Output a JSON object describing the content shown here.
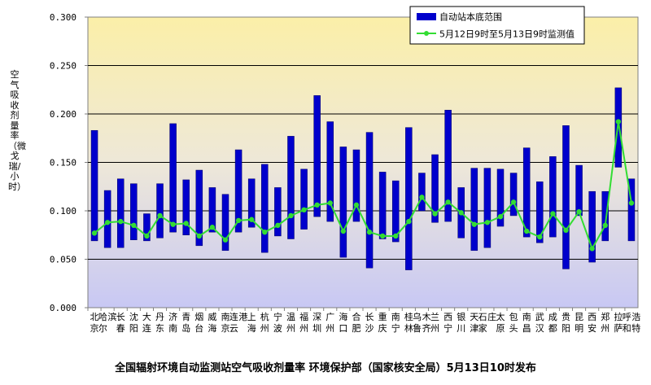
{
  "chart_data": {
    "type": "bar",
    "ylabel": "空气吸收剂量率（微戈瑞/小时）",
    "caption": "全国辐射环境自动监测站空气吸收剂量率  环境保护部（国家核安全局）5月13日10时发布",
    "ylim": [
      0,
      0.3
    ],
    "yticks": [
      "0.000",
      "0.050",
      "0.100",
      "0.150",
      "0.200",
      "0.250",
      "0.300"
    ],
    "legend_position": "top-right",
    "categories": [
      "北京",
      "哈尔滨",
      "长春",
      "沈阳",
      "大连",
      "丹东",
      "济南",
      "青岛",
      "烟台",
      "威海",
      "南京",
      "连云港",
      "上海",
      "杭州",
      "宁波",
      "温州",
      "福州",
      "深圳",
      "广州",
      "海口",
      "合肥",
      "长沙",
      "重庆",
      "南宁",
      "桂林",
      "乌鲁木齐",
      "兰州",
      "西宁",
      "银川",
      "天津",
      "石家庄",
      "太原",
      "包头",
      "南昌",
      "武汉",
      "成都",
      "贵阳",
      "昆明",
      "西安",
      "郑州",
      "拉萨",
      "呼和浩特"
    ],
    "series": [
      {
        "name": "自动站本底范围",
        "kind": "range-bar",
        "color": "#0000cc",
        "low": [
          0.069,
          0.062,
          0.062,
          0.07,
          0.069,
          0.072,
          0.078,
          0.075,
          0.064,
          0.078,
          0.059,
          0.078,
          0.083,
          0.057,
          0.074,
          0.071,
          0.081,
          0.094,
          0.089,
          0.052,
          0.089,
          0.041,
          0.071,
          0.068,
          0.039,
          0.1,
          0.088,
          0.089,
          0.072,
          0.059,
          0.062,
          0.084,
          0.095,
          0.073,
          0.067,
          0.073,
          0.04,
          0.095,
          0.047,
          0.069,
          0.145,
          0.069
        ],
        "high": [
          0.183,
          0.121,
          0.133,
          0.128,
          0.097,
          0.128,
          0.19,
          0.132,
          0.142,
          0.124,
          0.117,
          0.163,
          0.133,
          0.148,
          0.124,
          0.177,
          0.143,
          0.219,
          0.192,
          0.166,
          0.163,
          0.181,
          0.14,
          0.131,
          0.186,
          0.139,
          0.158,
          0.204,
          0.124,
          0.144,
          0.144,
          0.143,
          0.139,
          0.165,
          0.13,
          0.156,
          0.188,
          0.147,
          0.12,
          0.12,
          0.227,
          0.133
        ]
      },
      {
        "name": "5月12日9时至5月13日9时监测值",
        "kind": "line",
        "color": "#33dd33",
        "values": [
          0.077,
          0.088,
          0.089,
          0.085,
          0.074,
          0.095,
          0.086,
          0.087,
          0.074,
          0.083,
          0.07,
          0.09,
          0.091,
          0.078,
          0.085,
          0.095,
          0.101,
          0.106,
          0.108,
          0.079,
          0.106,
          0.078,
          0.074,
          0.074,
          0.089,
          0.114,
          0.097,
          0.109,
          0.098,
          0.086,
          0.088,
          0.094,
          0.109,
          0.079,
          0.073,
          0.097,
          0.08,
          0.099,
          0.061,
          0.085,
          0.192,
          0.108
        ]
      }
    ]
  }
}
